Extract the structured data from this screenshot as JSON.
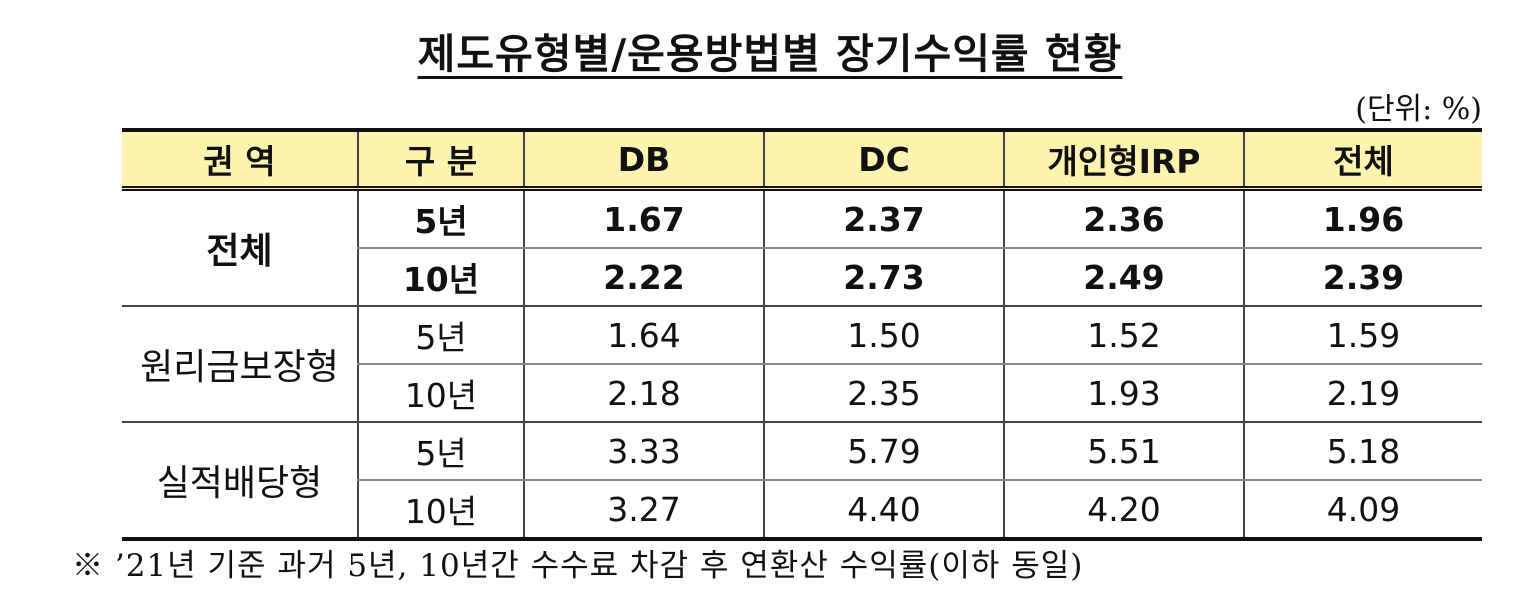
{
  "title": "제도유형별/운용방법별 장기수익률 현황",
  "unit": "(단위: %)",
  "table": {
    "headers": [
      "권 역",
      "구 분",
      "DB",
      "DC",
      "개인형IRP",
      "전체"
    ],
    "groups": [
      {
        "category": "전체",
        "rows": [
          {
            "period": "5년",
            "values": [
              "1.67",
              "2.37",
              "2.36",
              "1.96"
            ]
          },
          {
            "period": "10년",
            "values": [
              "2.22",
              "2.73",
              "2.49",
              "2.39"
            ]
          }
        ]
      },
      {
        "category": "원리금보장형",
        "rows": [
          {
            "period": "5년",
            "values": [
              "1.64",
              "1.50",
              "1.52",
              "1.59"
            ]
          },
          {
            "period": "10년",
            "values": [
              "2.18",
              "2.35",
              "1.93",
              "2.19"
            ]
          }
        ]
      },
      {
        "category": "실적배당형",
        "rows": [
          {
            "period": "5년",
            "values": [
              "3.33",
              "5.79",
              "5.51",
              "5.18"
            ]
          },
          {
            "period": "10년",
            "values": [
              "3.27",
              "4.40",
              "4.20",
              "4.09"
            ]
          }
        ]
      }
    ]
  },
  "footnote": "※ ’21년 기준 과거 5년, 10년간 수수료 차감 후 연환산 수익률(이하 동일)",
  "colors": {
    "header_bg": "#fff3b0",
    "border": "#111111"
  }
}
